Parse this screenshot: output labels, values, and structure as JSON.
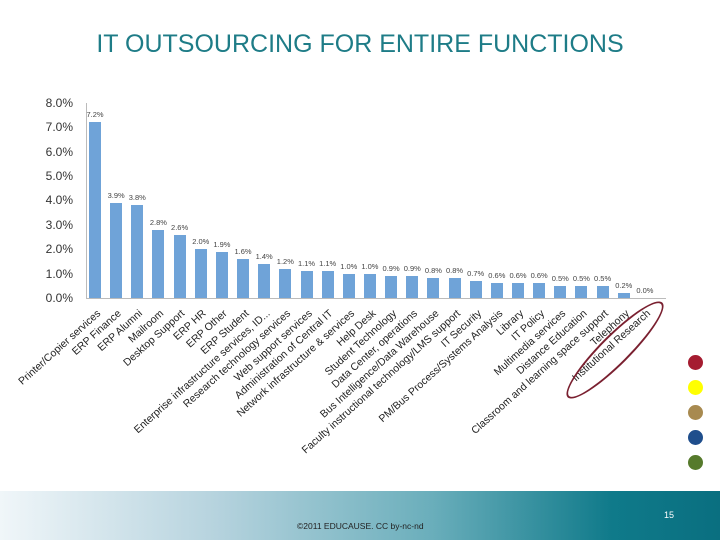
{
  "slide": {
    "title": "IT OUTSOURCING FOR ENTIRE FUNCTIONS",
    "footer_text": "©2011 EDUCAUSE. CC by-nc-nd",
    "page_number": "15",
    "legend_dots": [
      "#a51c30",
      "#ffff00",
      "#a88a50",
      "#1f4e8c",
      "#567a2c"
    ],
    "annotation_color": "#7a2030"
  },
  "chart_data": {
    "type": "bar",
    "title": "IT OUTSOURCING FOR ENTIRE FUNCTIONS",
    "xlabel": "",
    "ylabel": "",
    "ylim": [
      0,
      8
    ],
    "yticks": [
      "0.0%",
      "1.0%",
      "2.0%",
      "3.0%",
      "4.0%",
      "5.0%",
      "6.0%",
      "7.0%",
      "8.0%"
    ],
    "grid": false,
    "bar_color": "#6fa3d8",
    "categories": [
      "Printer/Copier services",
      "ERP Finance",
      "ERP Alumni",
      "Mailroom",
      "Desktop Support",
      "ERP HR",
      "ERP Other",
      "ERP Student",
      "Enterprise infrastructure services, ID...",
      "Research technology services",
      "Web support services",
      "Administration of Central IT",
      "Network infrastructure & services",
      "Help Desk",
      "Student Technology",
      "Data Center, operations",
      "Bus Intelligence/Data Warehouse",
      "Faculty instructional technology/LMS support",
      "IT Security",
      "PM/Bus Process/Systems Analysis",
      "Library",
      "IT Policy",
      "Multimedia services",
      "Distance Education",
      "Classroom and learning space support",
      "Telephony",
      "Institutional Research"
    ],
    "values": [
      7.2,
      3.9,
      3.8,
      2.8,
      2.6,
      2.0,
      1.9,
      1.6,
      1.4,
      1.2,
      1.1,
      1.1,
      1.0,
      1.0,
      0.9,
      0.9,
      0.8,
      0.8,
      0.7,
      0.6,
      0.6,
      0.6,
      0.5,
      0.5,
      0.5,
      0.2,
      0.0
    ],
    "value_labels": [
      "7.2%",
      "3.9%",
      "3.8%",
      "2.8%",
      "2.6%",
      "2.0%",
      "1.9%",
      "1.6%",
      "1.4%",
      "1.2%",
      "1.1%",
      "1.1%",
      "1.0%",
      "1.0%",
      "0.9%",
      "0.9%",
      "0.8%",
      "0.8%",
      "0.7%",
      "0.6%",
      "0.6%",
      "0.6%",
      "0.5%",
      "0.5%",
      "0.5%",
      "0.2%",
      "0.0%"
    ],
    "annotations": [
      "Institutional Research circled"
    ]
  }
}
